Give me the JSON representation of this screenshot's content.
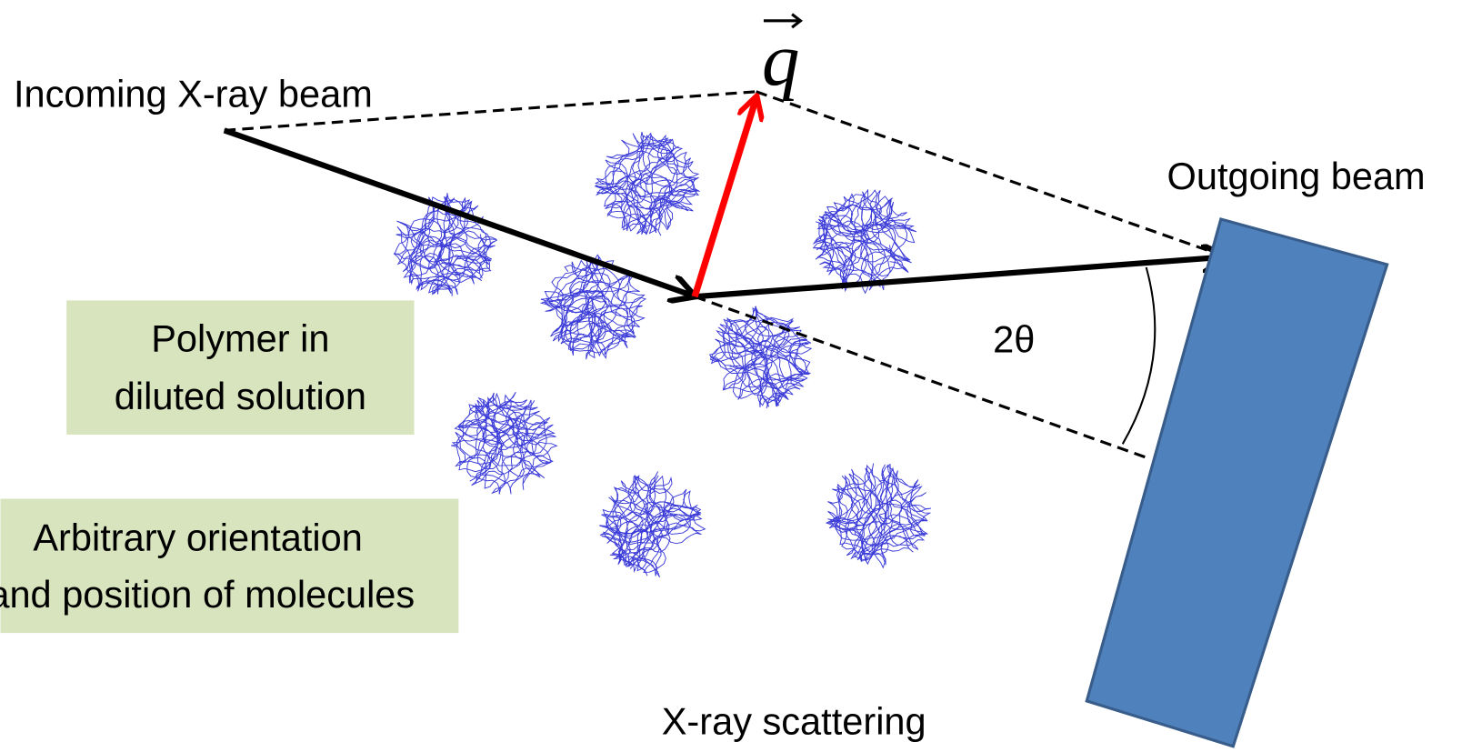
{
  "labels": {
    "incoming": "Incoming X-ray beam",
    "q": "q",
    "outgoing": "Outgoing beam",
    "angle": "2θ",
    "caption": "X-ray scattering"
  },
  "boxes": [
    {
      "lines": [
        "Polymer in",
        "diluted solution"
      ]
    },
    {
      "lines": [
        "Arbitrary orientation",
        "and position of molecules"
      ]
    }
  ]
}
